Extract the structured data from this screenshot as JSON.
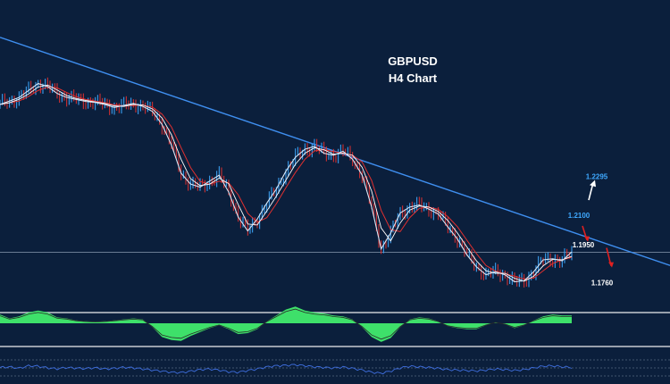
{
  "chart_data": {
    "type": "line",
    "title": "GBPUSD",
    "subtitle": "H4 Chart",
    "series": [
      {
        "values": [
          1.2655,
          1.2672,
          1.269,
          1.2725,
          1.276,
          1.2745,
          1.271,
          1.269,
          1.268,
          1.267,
          1.2665,
          1.2655,
          1.264,
          1.265,
          1.266,
          1.2645,
          1.262,
          1.2555,
          1.245,
          1.231,
          1.2255,
          1.224,
          1.227,
          1.23,
          1.2215,
          1.209,
          1.202,
          1.208,
          1.216,
          1.223,
          1.232,
          1.239,
          1.243,
          1.2445,
          1.241,
          1.24,
          1.242,
          1.238,
          1.23,
          1.214,
          1.193,
          1.201,
          1.211,
          1.214,
          1.215,
          1.213,
          1.2105,
          1.204,
          1.198,
          1.19,
          1.184,
          1.18,
          1.1815,
          1.18,
          1.1765,
          1.177,
          1.1815,
          1.1875,
          1.188,
          1.187,
          1.1915
        ]
      }
    ],
    "trendline": {
      "from": 1.2992,
      "to": 1.1847
    },
    "horizontal_level": 1.1913,
    "levels": [
      {
        "label": "1.2295",
        "value": 1.2295,
        "color": "#3fa9ff",
        "direction": "up"
      },
      {
        "label": "1.2100",
        "value": 1.21,
        "color": "#3fa9ff",
        "direction": "none"
      },
      {
        "label": "1.1950",
        "value": 1.195,
        "color": "#ffffff",
        "direction": "down"
      },
      {
        "label": "1.1760",
        "value": 1.176,
        "color": "#ffffff",
        "direction": "down"
      }
    ],
    "oscillator": {
      "values": [
        0.45,
        0.25,
        0.35,
        0.55,
        0.65,
        0.55,
        0.3,
        0.25,
        0.15,
        0.1,
        0.08,
        0.1,
        0.15,
        0.2,
        0.25,
        0.2,
        -0.2,
        -0.7,
        -0.85,
        -0.9,
        -0.65,
        -0.45,
        -0.25,
        -0.1,
        -0.3,
        -0.55,
        -0.5,
        -0.3,
        0.1,
        0.4,
        0.7,
        0.85,
        0.65,
        0.55,
        0.5,
        0.4,
        0.35,
        0.2,
        -0.2,
        -0.7,
        -0.95,
        -0.75,
        -0.2,
        0.2,
        0.3,
        0.25,
        0.1,
        -0.15,
        -0.25,
        -0.3,
        -0.3,
        -0.1,
        0.05,
        -0.05,
        -0.25,
        -0.1,
        0.15,
        0.35,
        0.45,
        0.4,
        0.4
      ]
    },
    "rsi": {
      "values": [
        0.52,
        0.55,
        0.48,
        0.6,
        0.58,
        0.5,
        0.46,
        0.52,
        0.49,
        0.47,
        0.51,
        0.45,
        0.48,
        0.53,
        0.5,
        0.45,
        0.4,
        0.35,
        0.3,
        0.28,
        0.35,
        0.42,
        0.45,
        0.4,
        0.32,
        0.3,
        0.38,
        0.45,
        0.55,
        0.6,
        0.62,
        0.65,
        0.6,
        0.55,
        0.52,
        0.5,
        0.54,
        0.48,
        0.4,
        0.3,
        0.25,
        0.35,
        0.5,
        0.58,
        0.55,
        0.52,
        0.48,
        0.42,
        0.4,
        0.38,
        0.36,
        0.4,
        0.45,
        0.42,
        0.38,
        0.42,
        0.5,
        0.58,
        0.6,
        0.55,
        0.52
      ]
    },
    "colors": {
      "background": "#0b1f3c",
      "price": "#d8e6f5",
      "up_candle": "#3fa9ff",
      "down_candle": "#e03030",
      "ma_fast": "#ffffff",
      "ma_slow": "#e03030",
      "trendline": "#3f8ff0",
      "oscillator_fill": "#3ee06a",
      "rsi": "#3f6fe0",
      "separator": "#c8ccd2",
      "arrow_up": "#ffffff",
      "arrow_down": "#e02020"
    }
  }
}
